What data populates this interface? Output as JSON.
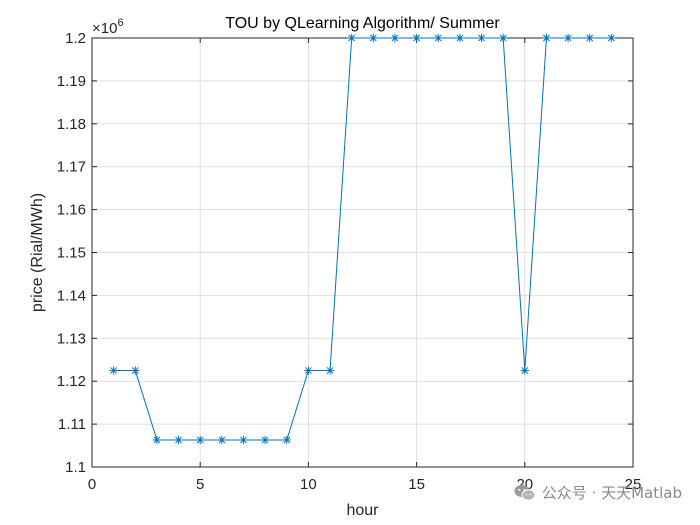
{
  "chart_data": {
    "type": "line",
    "title": "TOU by QLearning Algorithm/ Summer",
    "xlabel": "hour",
    "ylabel": "price (Rial/MWh)",
    "xlim": [
      0,
      25
    ],
    "ylim": [
      1.1,
      1.2
    ],
    "y_multiplier": "×10",
    "y_multiplier_exp": "6",
    "xticks": [
      0,
      5,
      10,
      15,
      20,
      25
    ],
    "yticks": [
      1.1,
      1.11,
      1.12,
      1.13,
      1.14,
      1.15,
      1.16,
      1.17,
      1.18,
      1.19,
      1.2
    ],
    "ytick_labels": [
      "1.1",
      "1.11",
      "1.12",
      "1.13",
      "1.14",
      "1.15",
      "1.16",
      "1.17",
      "1.18",
      "1.19",
      "1.2"
    ],
    "grid": true,
    "marker": "*",
    "line_color": "#0072bd",
    "series": [
      {
        "x": [
          1,
          2,
          3,
          4,
          5,
          6,
          7,
          8,
          9,
          10,
          11,
          12,
          13,
          14,
          15,
          16,
          17,
          18,
          19,
          20,
          21,
          22,
          23,
          24
        ],
        "values": [
          1.1225,
          1.1225,
          1.1063,
          1.1063,
          1.1063,
          1.1063,
          1.1063,
          1.1063,
          1.1063,
          1.1225,
          1.1225,
          1.2,
          1.2,
          1.2,
          1.2,
          1.2,
          1.2,
          1.2,
          1.2,
          1.1225,
          1.2,
          1.2,
          1.2,
          1.2
        ]
      }
    ]
  },
  "watermark": {
    "text": "公众号 · 天天Matlab",
    "icon": "wechat-icon"
  }
}
